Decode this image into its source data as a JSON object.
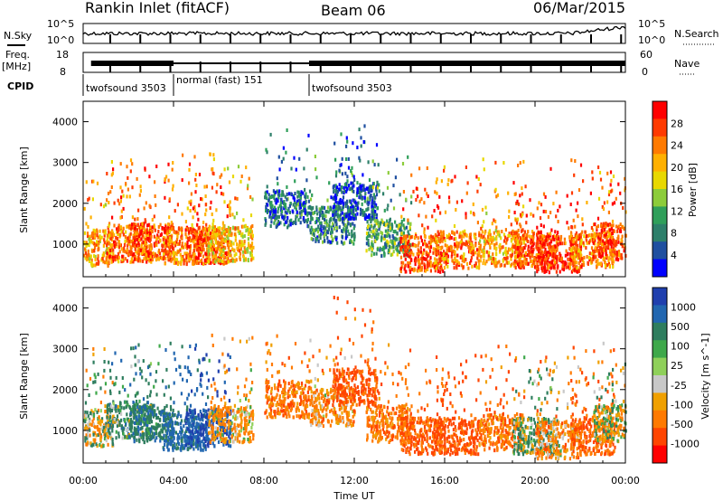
{
  "header": {
    "station": "Rankin Inlet (fitACF)",
    "beam": "Beam 06",
    "date": "06/Mar/2015"
  },
  "upper_panels": {
    "nsky_label": "N.Sky",
    "nsky_ticks": [
      "10^5",
      "10^0"
    ],
    "nsearch_label": "N.Search",
    "nsearch_ticks": [
      "10^5",
      "10^0"
    ],
    "freq_label": "Freq.",
    "freq_unit": "[MHz]",
    "freq_ticks": [
      "18",
      "8"
    ],
    "nave_label": "Nave",
    "nave_ticks": [
      "60",
      "0"
    ],
    "cpid_label": "CPID",
    "cpid_modes": [
      {
        "name": "twofsound 3503",
        "start_h": 0.0
      },
      {
        "name": "normal (fast) 151",
        "start_h": 4.0
      },
      {
        "name": "twofsound 3503",
        "start_h": 10.0
      }
    ]
  },
  "x_axis": {
    "label": "Time UT",
    "ticks": [
      "00:00",
      "04:00",
      "08:00",
      "12:00",
      "16:00",
      "20:00",
      "00:00"
    ]
  },
  "power_colorbar": {
    "label": "Power [dB]",
    "ticks": [
      "28",
      "24",
      "20",
      "16",
      "12",
      "8",
      "4"
    ],
    "colors": [
      "#ff0000",
      "#ff3a00",
      "#ff7a00",
      "#ffb000",
      "#e8d800",
      "#8ccc3a",
      "#2f9f5a",
      "#2d7f6a",
      "#1f4fa0",
      "#0000ff"
    ]
  },
  "velocity_colorbar": {
    "label": "Velocity [m s^-1]",
    "ticks": [
      "1000",
      "500",
      "100",
      "25",
      "-25",
      "-100",
      "-500",
      "-1000"
    ],
    "colors": [
      "#1f3fae",
      "#2166b0",
      "#2e7d5e",
      "#3ea84a",
      "#8fd05a",
      "#c8c8c8",
      "#f0a000",
      "#ff7a00",
      "#ff4500",
      "#ff0000"
    ]
  },
  "chart_data": [
    {
      "type": "heatmap",
      "name": "Power",
      "ylabel": "Slant Range [km]",
      "xlabel": "",
      "yticks": [
        "1000",
        "2000",
        "3000",
        "4000"
      ],
      "ylim": [
        200,
        4500
      ],
      "xlim": [
        0,
        24
      ],
      "series": [
        {
          "x_h": [
            0.3,
            2,
            3,
            4.5,
            5.5,
            6.5
          ],
          "range_km": [
            950,
            1050,
            1100,
            1000,
            1000,
            1050
          ],
          "power_db": [
            22,
            24,
            26,
            24,
            26,
            20
          ]
        },
        {
          "x_h": [
            9,
            11,
            12,
            13.5,
            15,
            16.5,
            18.5,
            20,
            21,
            22.5,
            23.5
          ],
          "range_km": [
            1900,
            1500,
            2100,
            1200,
            800,
            900,
            950,
            900,
            800,
            900,
            1100
          ],
          "power_db": [
            8,
            10,
            6,
            12,
            26,
            24,
            22,
            26,
            28,
            24,
            26
          ]
        }
      ]
    },
    {
      "type": "heatmap",
      "name": "Velocity",
      "ylabel": "Slant Range [km]",
      "xlabel": "Time UT",
      "yticks": [
        "1000",
        "2000",
        "3000",
        "4000"
      ],
      "ylim": [
        200,
        4500
      ],
      "xlim": [
        0,
        24
      ],
      "series": [
        {
          "x_h": [
            0.3,
            2,
            3,
            4.5,
            5.5,
            6.5
          ],
          "range_km": [
            1100,
            1300,
            1200,
            1000,
            1100,
            1200
          ],
          "velocity_ms": [
            -20,
            200,
            300,
            500,
            800,
            -150
          ]
        },
        {
          "x_h": [
            9,
            11,
            12,
            13.5,
            15,
            16.5,
            18.5,
            20,
            21,
            22.5,
            23.5
          ],
          "range_km": [
            1800,
            1600,
            2100,
            1200,
            900,
            900,
            1000,
            900,
            800,
            900,
            1200
          ],
          "velocity_ms": [
            -300,
            -200,
            -500,
            -300,
            -400,
            -500,
            -300,
            100,
            -200,
            -400,
            -20
          ]
        }
      ]
    }
  ]
}
